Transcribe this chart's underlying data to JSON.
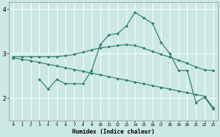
{
  "background_color": "#cce8e4",
  "grid_color": "#ffffff",
  "line_color": "#2e7d6e",
  "xlabel": "Humidex (Indice chaleur)",
  "xlim": [
    -0.5,
    23.5
  ],
  "ylim": [
    1.5,
    4.15
  ],
  "yticks": [
    2,
    3,
    4
  ],
  "xtick_labels": [
    "0",
    "1",
    "2",
    "3",
    "4",
    "5",
    "6",
    "7",
    "8",
    "9",
    "10",
    "11",
    "12",
    "13",
    "14",
    "15",
    "16",
    "17",
    "18",
    "19",
    "20",
    "21",
    "22",
    "23"
  ],
  "line1_x": [
    0,
    1,
    2,
    3,
    4,
    5,
    6,
    7,
    8,
    9,
    10,
    11,
    12,
    13,
    14,
    15,
    16,
    17,
    18,
    19,
    20,
    21,
    22,
    23
  ],
  "line1_y": [
    2.93,
    2.93,
    2.93,
    2.93,
    2.93,
    2.93,
    2.95,
    2.98,
    3.03,
    3.08,
    3.13,
    3.15,
    3.18,
    3.2,
    3.18,
    3.12,
    3.05,
    2.98,
    2.92,
    2.85,
    2.78,
    2.7,
    2.63,
    2.62
  ],
  "line2_x": [
    0,
    1,
    2,
    3,
    4,
    5,
    6,
    7,
    8,
    9,
    10,
    11,
    12,
    13,
    14,
    15,
    16,
    17,
    18,
    19,
    20,
    21,
    22,
    23
  ],
  "line2_y": [
    2.9,
    2.87,
    2.84,
    2.8,
    2.76,
    2.72,
    2.68,
    2.64,
    2.6,
    2.56,
    2.52,
    2.48,
    2.44,
    2.4,
    2.36,
    2.32,
    2.28,
    2.24,
    2.2,
    2.16,
    2.12,
    2.08,
    2.04,
    1.78
  ],
  "line3_x": [
    3,
    4,
    5,
    6,
    7,
    8,
    9,
    10,
    11,
    12,
    13,
    14,
    15,
    16,
    17,
    18,
    19,
    20,
    21,
    22,
    23
  ],
  "line3_y": [
    2.42,
    2.2,
    2.42,
    2.32,
    2.32,
    2.32,
    2.62,
    3.2,
    3.42,
    3.45,
    3.62,
    3.93,
    3.8,
    3.68,
    3.25,
    3.0,
    2.62,
    2.62,
    1.9,
    2.02,
    1.75
  ]
}
